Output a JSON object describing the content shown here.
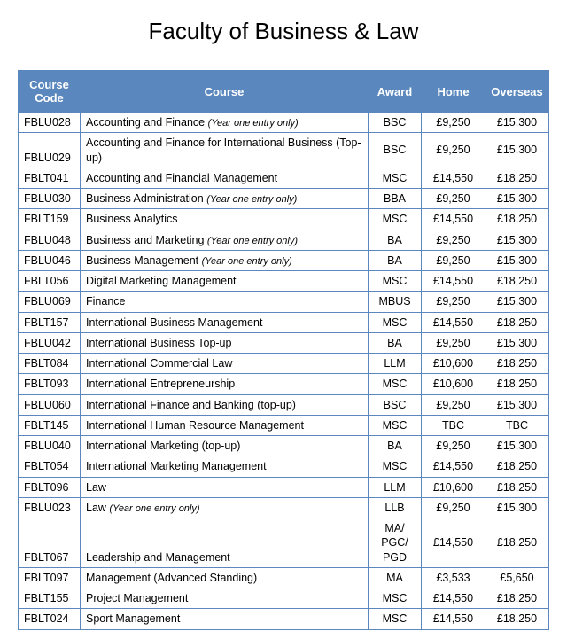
{
  "title": "Faculty of Business & Law",
  "table": {
    "header_bg": "#5a87bd",
    "header_fg": "#ffffff",
    "border_color": "#5a87bd",
    "columns": [
      "Course Code",
      "Course",
      "Award",
      "Home",
      "Overseas"
    ],
    "rows": [
      {
        "code": "FBLU028",
        "course": "Accounting and Finance",
        "note": "(Year one entry only)",
        "award": "BSC",
        "home": "£9,250",
        "overseas": "£15,300"
      },
      {
        "code": "FBLU029",
        "course": "Accounting and Finance for International Business (Top-up)",
        "note": "",
        "award": "BSC",
        "home": "£9,250",
        "overseas": "£15,300"
      },
      {
        "code": "FBLT041",
        "course": "Accounting and Financial Management",
        "note": "",
        "award": "MSC",
        "home": "£14,550",
        "overseas": "£18,250"
      },
      {
        "code": "FBLU030",
        "course": "Business Administration",
        "note": "(Year one entry only)",
        "award": "BBA",
        "home": "£9,250",
        "overseas": "£15,300"
      },
      {
        "code": "FBLT159",
        "course": "Business Analytics",
        "note": "",
        "award": "MSC",
        "home": "£14,550",
        "overseas": "£18,250"
      },
      {
        "code": "FBLU048",
        "course": "Business and Marketing",
        "note": "(Year one entry only)",
        "award": "BA",
        "home": "£9,250",
        "overseas": "£15,300"
      },
      {
        "code": "FBLU046",
        "course": "Business Management",
        "note": "(Year one entry only)",
        "award": "BA",
        "home": "£9,250",
        "overseas": "£15,300"
      },
      {
        "code": "FBLT056",
        "course": "Digital Marketing Management",
        "note": "",
        "award": "MSC",
        "home": "£14,550",
        "overseas": "£18,250"
      },
      {
        "code": "FBLU069",
        "course": "Finance",
        "note": "",
        "award": "MBUS",
        "home": "£9,250",
        "overseas": "£15,300"
      },
      {
        "code": "FBLT157",
        "course": "International Business Management",
        "note": "",
        "award": "MSC",
        "home": "£14,550",
        "overseas": "£18,250"
      },
      {
        "code": "FBLU042",
        "course": "International Business Top-up",
        "note": "",
        "award": "BA",
        "home": "£9,250",
        "overseas": "£15,300"
      },
      {
        "code": "FBLT084",
        "course": "International Commercial Law",
        "note": "",
        "award": "LLM",
        "home": "£10,600",
        "overseas": "£18,250"
      },
      {
        "code": "FBLT093",
        "course": "International Entrepreneurship",
        "note": "",
        "award": "MSC",
        "home": "£10,600",
        "overseas": "£18,250"
      },
      {
        "code": "FBLU060",
        "course": "International Finance and Banking (top-up)",
        "note": "",
        "award": "BSC",
        "home": "£9,250",
        "overseas": "£15,300"
      },
      {
        "code": "FBLT145",
        "course": "International Human Resource Management",
        "note": "",
        "award": "MSC",
        "home": "TBC",
        "overseas": "TBC"
      },
      {
        "code": "FBLU040",
        "course": "International Marketing (top-up)",
        "note": "",
        "award": "BA",
        "home": "£9,250",
        "overseas": "£15,300"
      },
      {
        "code": "FBLT054",
        "course": "International Marketing Management",
        "note": "",
        "award": "MSC",
        "home": "£14,550",
        "overseas": "£18,250"
      },
      {
        "code": "FBLT096",
        "course": "Law",
        "note": "",
        "award": "LLM",
        "home": "£10,600",
        "overseas": "£18,250"
      },
      {
        "code": "FBLU023",
        "course": "Law",
        "note": "(Year one entry only)",
        "award": "LLB",
        "home": "£9,250",
        "overseas": "£15,300"
      },
      {
        "code": "FBLT067",
        "course": "Leadership and Management",
        "note": "",
        "award": "MA/ PGC/ PGD",
        "home": "£14,550",
        "overseas": "£18,250"
      },
      {
        "code": "FBLT097",
        "course": "Management (Advanced Standing)",
        "note": "",
        "award": "MA",
        "home": "£3,533",
        "overseas": "£5,650"
      },
      {
        "code": "FBLT155",
        "course": "Project Management",
        "note": "",
        "award": "MSC",
        "home": "£14,550",
        "overseas": "£18,250"
      },
      {
        "code": "FBLT024",
        "course": "Sport Management",
        "note": "",
        "award": "MSC",
        "home": "£14,550",
        "overseas": "£18,250"
      }
    ]
  }
}
